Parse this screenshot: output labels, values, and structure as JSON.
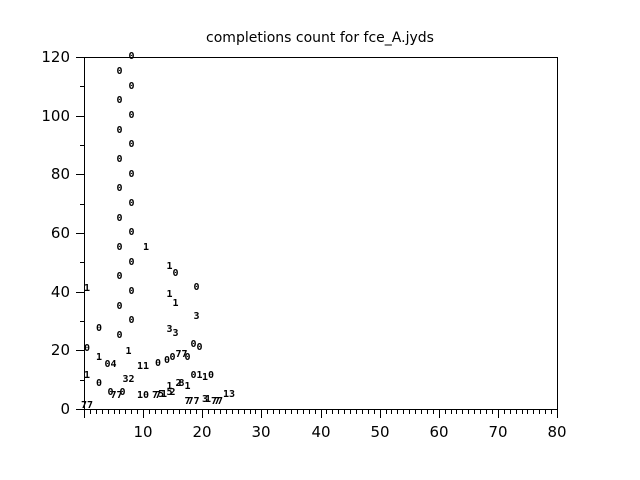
{
  "figure": {
    "background": "#ffffff",
    "axis_color": "#000000",
    "text_color": "#000000"
  },
  "chart_data": {
    "type": "scatter",
    "title": "completions count for fce_A.jyds",
    "xlabel": "",
    "ylabel": "",
    "xlim": [
      0,
      80
    ],
    "ylim": [
      0,
      120
    ],
    "grid": false,
    "legend": "none",
    "marker": "digit-glyph",
    "x_major_step": 10,
    "x_minor_step": 1,
    "y_major_step": 20,
    "y_minor_step": 10,
    "x_tick_labels": [
      {
        "value": 10,
        "label": "10"
      },
      {
        "value": 20,
        "label": "20"
      },
      {
        "value": 30,
        "label": "30"
      },
      {
        "value": 40,
        "label": "40"
      },
      {
        "value": 50,
        "label": "50"
      },
      {
        "value": 60,
        "label": "60"
      },
      {
        "value": 70,
        "label": "70"
      },
      {
        "value": 80,
        "label": "80"
      }
    ],
    "y_tick_labels": [
      {
        "value": 0,
        "label": "0"
      },
      {
        "value": 20,
        "label": "20"
      },
      {
        "value": 40,
        "label": "40"
      },
      {
        "value": 60,
        "label": "60"
      },
      {
        "value": 80,
        "label": "80"
      },
      {
        "value": 100,
        "label": "100"
      },
      {
        "value": 120,
        "label": "120"
      }
    ],
    "points": [
      [
        8,
        120,
        "0"
      ],
      [
        6,
        115,
        "0"
      ],
      [
        8,
        110,
        "0"
      ],
      [
        6,
        105,
        "0"
      ],
      [
        8,
        100,
        "0"
      ],
      [
        6,
        95,
        "0"
      ],
      [
        8,
        90,
        "0"
      ],
      [
        6,
        85,
        "0"
      ],
      [
        8,
        80,
        "0"
      ],
      [
        6,
        75,
        "0"
      ],
      [
        8,
        70,
        "0"
      ],
      [
        6,
        65,
        "0"
      ],
      [
        8,
        60,
        "0"
      ],
      [
        6,
        55,
        "0"
      ],
      [
        8,
        50,
        "0"
      ],
      [
        6,
        45,
        "0"
      ],
      [
        8,
        40,
        "0"
      ],
      [
        6,
        35,
        "0"
      ],
      [
        8,
        30,
        "0"
      ],
      [
        6,
        25,
        "0"
      ],
      [
        10.5,
        55,
        "1"
      ],
      [
        14.5,
        48.5,
        "1"
      ],
      [
        15.5,
        46,
        "0"
      ],
      [
        19,
        41.5,
        "0"
      ],
      [
        0.5,
        41,
        "1"
      ],
      [
        14.5,
        39,
        "1"
      ],
      [
        15.5,
        36,
        "1"
      ],
      [
        19,
        31.5,
        "3"
      ],
      [
        2.5,
        27.5,
        "0"
      ],
      [
        14.5,
        27,
        "3"
      ],
      [
        15.5,
        25.5,
        "3"
      ],
      [
        18.5,
        22,
        "0"
      ],
      [
        19.5,
        21,
        "0"
      ],
      [
        0.5,
        20.5,
        "0"
      ],
      [
        7.5,
        19.5,
        "1"
      ],
      [
        16,
        18.5,
        "7"
      ],
      [
        17,
        18.5,
        "7"
      ],
      [
        2.5,
        17.5,
        "1"
      ],
      [
        15,
        17.5,
        "0"
      ],
      [
        17.5,
        17.5,
        "0"
      ],
      [
        14,
        16.5,
        "0"
      ],
      [
        12.5,
        15.5,
        "0"
      ],
      [
        4,
        15,
        "0"
      ],
      [
        5,
        15,
        "4"
      ],
      [
        9.5,
        14.5,
        "1"
      ],
      [
        10.5,
        14.5,
        "1"
      ],
      [
        0.5,
        11.5,
        "1"
      ],
      [
        18.5,
        11.5,
        "0"
      ],
      [
        19.5,
        11.5,
        "1"
      ],
      [
        21.5,
        11.5,
        "0"
      ],
      [
        20.5,
        10.5,
        "1"
      ],
      [
        7,
        10,
        "3"
      ],
      [
        8,
        10,
        "2"
      ],
      [
        2.5,
        8.5,
        "0"
      ],
      [
        16,
        8.5,
        "2"
      ],
      [
        16.5,
        8.5,
        "8"
      ],
      [
        14.5,
        7.5,
        "1"
      ],
      [
        17.5,
        7.5,
        "1"
      ],
      [
        13,
        5,
        "5"
      ],
      [
        13.5,
        5,
        "1"
      ],
      [
        14.5,
        5.5,
        "5"
      ],
      [
        15,
        5.5,
        "2"
      ],
      [
        4.5,
        5.5,
        "0"
      ],
      [
        5,
        4.5,
        "7"
      ],
      [
        6,
        4.5,
        "7"
      ],
      [
        6.5,
        5.5,
        "0"
      ],
      [
        9.5,
        4.5,
        "1"
      ],
      [
        10.5,
        4.5,
        "0"
      ],
      [
        12,
        4.5,
        "7"
      ],
      [
        12.5,
        4.5,
        "7"
      ],
      [
        24,
        5,
        "1"
      ],
      [
        25,
        5,
        "3"
      ],
      [
        17.5,
        2.5,
        "7"
      ],
      [
        18,
        2.5,
        "7"
      ],
      [
        19,
        2.5,
        "7"
      ],
      [
        20.5,
        3,
        "3"
      ],
      [
        21,
        3,
        "1"
      ],
      [
        22,
        2.5,
        "7"
      ],
      [
        22.5,
        2.5,
        "7"
      ],
      [
        23,
        2.5,
        "7"
      ],
      [
        0,
        1,
        "7"
      ],
      [
        1,
        1,
        "7"
      ]
    ]
  }
}
